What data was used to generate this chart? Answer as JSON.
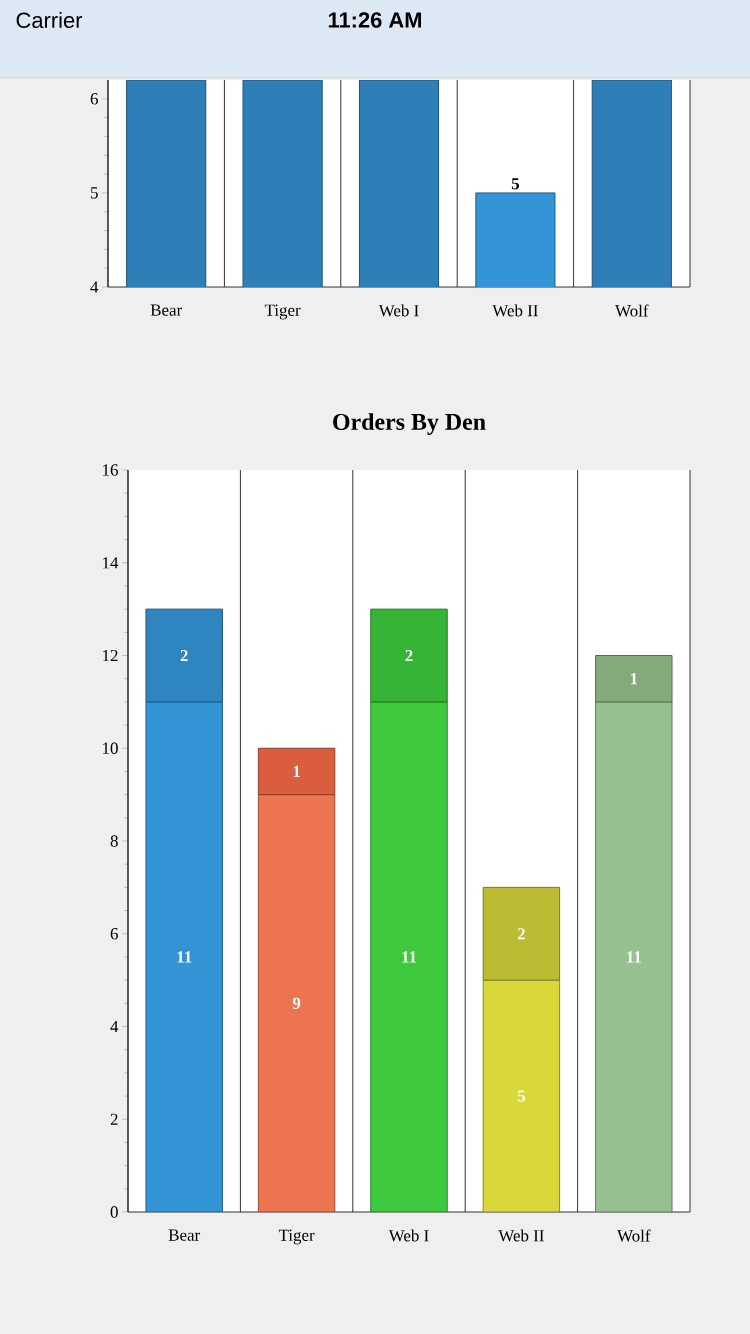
{
  "chart_data": [
    {
      "type": "bar",
      "categories": [
        "Bear",
        "Tiger",
        "Web I",
        "Web II",
        "Wolf"
      ],
      "values": [
        6.2,
        6.2,
        6.2,
        5,
        6.2
      ],
      "colors": [
        "#2e7fb8",
        "#2e7fb8",
        "#2e7fb8",
        "#3394d6",
        "#2e7fb8"
      ],
      "value_labels": [
        null,
        null,
        null,
        "5",
        null
      ],
      "ylim": [
        4,
        6.2
      ],
      "yticks": [
        4,
        5,
        6
      ],
      "grid": "x",
      "annotations": [
        "Carrier",
        "11:26 AM"
      ]
    },
    {
      "type": "bar",
      "title": "Orders By Den",
      "categories": [
        "Bear",
        "Tiger",
        "Web I",
        "Web II",
        "Wolf"
      ],
      "stacked": true,
      "series": [
        {
          "values": [
            11,
            9,
            11,
            5,
            11
          ],
          "colors": [
            "#3294d4",
            "#ec7450",
            "#3ec83e",
            "#d8d83a",
            "#96c090"
          ]
        },
        {
          "values": [
            2,
            1,
            2,
            2,
            1
          ],
          "colors": [
            "#2f85c0",
            "#da5e3e",
            "#36b436",
            "#bcbc32",
            "#84aa7c"
          ]
        }
      ],
      "data_labels": true,
      "ylim": [
        0,
        16
      ],
      "yticks": [
        0,
        2,
        4,
        6,
        8,
        10,
        12,
        14,
        16
      ],
      "grid": "x"
    }
  ]
}
